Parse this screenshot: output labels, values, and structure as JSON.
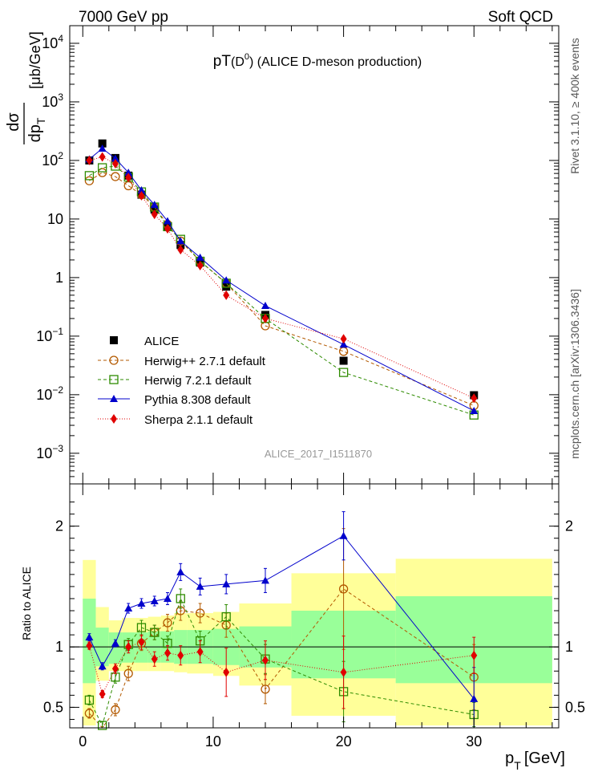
{
  "header": {
    "energy_label": "7000 GeV pp",
    "process_label": "Soft QCD"
  },
  "side_labels": {
    "rivet": "Rivet 3.1.10, ≥ 400k events",
    "mcplots": "mcplots.cern.ch [arXiv:1306.3436]"
  },
  "colors": {
    "alice": "#000000",
    "herwigpp": "#b35900",
    "herwig7": "#2e8b00",
    "pythia": "#0000cc",
    "sherpa": "#e00000",
    "band_yellow": "#ffff99",
    "band_green": "#99ff99"
  },
  "chart_data": [
    {
      "type": "scatter",
      "title_main": "pT",
      "title_paren": "(D",
      "title_sup": "0",
      "title_rest": ") (ALICE D-meson production)",
      "analysis_id": "ALICE_2017_I1511870",
      "ylabel_num": "dσ",
      "ylabel_den": "dp",
      "ylabel_den_sub": "T",
      "ylabel_unit": "[μb/GeV]",
      "yscale": "log",
      "ylim": [
        0.0003,
        20000
      ],
      "xlim": [
        -1,
        36.5
      ],
      "y_ticks": [
        {
          "v": 10000,
          "base": "10",
          "exp": "4"
        },
        {
          "v": 1000,
          "base": "10",
          "exp": "3"
        },
        {
          "v": 100,
          "base": "10",
          "exp": "2"
        },
        {
          "v": 10,
          "base": "10",
          "exp": ""
        },
        {
          "v": 1,
          "base": "1",
          "exp": ""
        },
        {
          "v": 0.1,
          "base": "10",
          "exp": "−1"
        },
        {
          "v": 0.01,
          "base": "10",
          "exp": "−2"
        },
        {
          "v": 0.001,
          "base": "10",
          "exp": "−3"
        }
      ],
      "legend": [
        {
          "label": "ALICE",
          "key": "alice"
        },
        {
          "label": "Herwig++ 2.7.1 default",
          "key": "herwigpp"
        },
        {
          "label": "Herwig 7.2.1 default",
          "key": "herwig7"
        },
        {
          "label": "Pythia 8.308 default",
          "key": "pythia"
        },
        {
          "label": "Sherpa 2.1.1 default",
          "key": "sherpa"
        }
      ],
      "x": [
        0.5,
        1.5,
        2.5,
        3.5,
        4.5,
        5.5,
        6.5,
        7.5,
        9,
        11,
        14,
        20,
        30
      ],
      "series": [
        {
          "name": "ALICE",
          "key": "alice",
          "values": [
            100,
            195,
            110,
            55,
            26,
            14.5,
            7.3,
            3.6,
            1.8,
            0.7,
            0.23,
            0.038,
            0.0098
          ]
        },
        {
          "name": "Herwig++ 2.7.1 default",
          "key": "herwigpp",
          "values": [
            45,
            62,
            53,
            37,
            26,
            16,
            8.1,
            4.2,
            1.9,
            0.8,
            0.15,
            0.055,
            0.0065
          ]
        },
        {
          "name": "Herwig 7.2.1 default",
          "key": "herwig7",
          "values": [
            55,
            75,
            80,
            52,
            29,
            16,
            7.4,
            4.5,
            1.9,
            0.8,
            0.2,
            0.024,
            0.0045
          ]
        },
        {
          "name": "Pythia 8.308 default",
          "key": "pythia",
          "values": [
            105,
            160,
            108,
            62,
            31,
            17.5,
            9.2,
            4.2,
            2.2,
            0.9,
            0.33,
            0.072,
            0.0053
          ]
        },
        {
          "name": "Sherpa 2.1.1 default",
          "key": "sherpa",
          "values": [
            100,
            115,
            88,
            51,
            25,
            12,
            6.8,
            3.0,
            1.6,
            0.5,
            0.2,
            0.09,
            0.0087
          ]
        }
      ]
    },
    {
      "type": "scatter",
      "ylabel": "Ratio to ALICE",
      "xlabel_main": "p",
      "xlabel_sub": "T",
      "xlabel_unit": "[GeV]",
      "ylim": [
        0.33,
        2.35
      ],
      "xlim": [
        -1,
        36.5
      ],
      "x_ticks": [
        0,
        10,
        20,
        30
      ],
      "y_ticks": [
        0.5,
        1,
        2
      ],
      "y_tick_labels": [
        "0.5",
        "1",
        "2"
      ],
      "bands": [
        {
          "x0": 0,
          "x1": 1,
          "green": [
            0.7,
            1.4
          ],
          "yellow": [
            0.35,
            1.72
          ]
        },
        {
          "x0": 1,
          "x1": 2,
          "green": [
            0.84,
            1.16
          ],
          "yellow": [
            0.72,
            1.33
          ]
        },
        {
          "x0": 2,
          "x1": 3,
          "green": [
            0.86,
            1.12
          ],
          "yellow": [
            0.8,
            1.22
          ]
        },
        {
          "x0": 3,
          "x1": 4,
          "green": [
            0.87,
            1.12
          ],
          "yellow": [
            0.8,
            1.24
          ]
        },
        {
          "x0": 4,
          "x1": 5,
          "green": [
            0.87,
            1.12
          ],
          "yellow": [
            0.8,
            1.24
          ]
        },
        {
          "x0": 5,
          "x1": 6,
          "green": [
            0.87,
            1.13
          ],
          "yellow": [
            0.8,
            1.25
          ]
        },
        {
          "x0": 6,
          "x1": 7,
          "green": [
            0.87,
            1.13
          ],
          "yellow": [
            0.8,
            1.26
          ]
        },
        {
          "x0": 7,
          "x1": 8,
          "green": [
            0.86,
            1.14
          ],
          "yellow": [
            0.79,
            1.28
          ]
        },
        {
          "x0": 8,
          "x1": 10,
          "green": [
            0.86,
            1.14
          ],
          "yellow": [
            0.78,
            1.28
          ]
        },
        {
          "x0": 10,
          "x1": 12,
          "green": [
            0.85,
            1.15
          ],
          "yellow": [
            0.76,
            1.29
          ]
        },
        {
          "x0": 12,
          "x1": 16,
          "green": [
            0.83,
            1.17
          ],
          "yellow": [
            0.68,
            1.36
          ]
        },
        {
          "x0": 16,
          "x1": 24,
          "green": [
            0.74,
            1.3
          ],
          "yellow": [
            0.43,
            1.61
          ]
        },
        {
          "x0": 24,
          "x1": 36,
          "green": [
            0.7,
            1.42
          ],
          "yellow": [
            0.35,
            1.73
          ]
        }
      ],
      "series": [
        {
          "name": "Herwig++ 2.7.1 default",
          "key": "herwigpp",
          "marker": "circle",
          "dash": "4,3",
          "values": [
            0.45,
            0.31,
            0.48,
            0.78,
            1.03,
            1.12,
            1.2,
            1.3,
            1.28,
            1.18,
            0.65,
            1.48,
            0.75
          ],
          "errors": [
            0.04,
            0.03,
            0.05,
            0.06,
            0.06,
            0.06,
            0.07,
            0.08,
            0.08,
            0.1,
            0.12,
            0.5,
            0.27
          ]
        },
        {
          "name": "Herwig 7.2.1 default",
          "key": "herwig7",
          "marker": "square",
          "dash": "4,3",
          "values": [
            0.56,
            0.35,
            0.75,
            1.02,
            1.16,
            1.12,
            1.03,
            1.4,
            1.05,
            1.25,
            0.9,
            0.63,
            0.44
          ],
          "errors": [
            0.04,
            0.03,
            0.05,
            0.05,
            0.06,
            0.06,
            0.06,
            0.08,
            0.08,
            0.1,
            0.12,
            0.25,
            0.1
          ]
        },
        {
          "name": "Pythia 8.308 default",
          "key": "pythia",
          "marker": "triangle",
          "dash": "",
          "values": [
            1.08,
            0.84,
            1.03,
            1.32,
            1.36,
            1.38,
            1.4,
            1.62,
            1.5,
            1.52,
            1.55,
            1.92,
            0.57
          ],
          "errors": [
            0.03,
            0.03,
            0.03,
            0.04,
            0.04,
            0.04,
            0.05,
            0.07,
            0.07,
            0.08,
            0.1,
            0.2,
            0.26
          ]
        },
        {
          "name": "Sherpa 2.1.1 default",
          "key": "sherpa",
          "marker": "diamond",
          "dash": "1,2",
          "values": [
            1.01,
            0.61,
            0.82,
            1.0,
            1.04,
            0.9,
            0.95,
            0.93,
            0.96,
            0.79,
            0.89,
            0.79,
            0.93
          ],
          "errors": [
            0.03,
            0.03,
            0.04,
            0.05,
            0.06,
            0.06,
            0.06,
            0.08,
            0.09,
            0.2,
            0.16,
            0.3,
            0.15
          ]
        }
      ]
    }
  ]
}
